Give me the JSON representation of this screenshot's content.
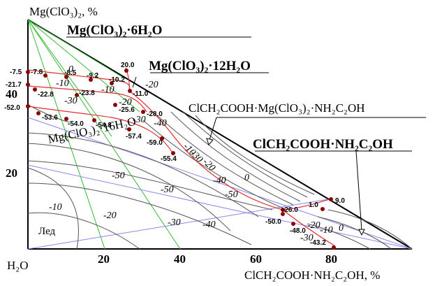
{
  "axes": {
    "y_label": "Mg(ClO₃)₂, %",
    "x_label": "ClCH₂COOH·NH₂C₂OH, %",
    "origin_label": "H₂O",
    "x_ticks": [
      "20",
      "40",
      "60",
      "80"
    ],
    "y_ticks": [
      "20",
      "40"
    ]
  },
  "phases": {
    "hexahydrate": "Mg(ClO₃)₂·6H₂O",
    "dodecahydrate": "Mg(ClO₃)₂·12H₂O",
    "hexadecahydrate": "Mg(ClO₃)₂·16H₂O",
    "double_compound": "ClCH₂COOH·Mg(ClO₃)₂·NH₂C₂OH",
    "salt_compound": "ClCH₂COOH·NH₂C₂OH",
    "ice": "Лед"
  },
  "isotherm_labels": [
    "0",
    "-10",
    "-20",
    "-30",
    "-40",
    "-50",
    "-10",
    "-20",
    "-30",
    "-40",
    "-50",
    "0",
    "-10",
    "-20",
    "-30",
    "-40",
    "-50",
    "-20",
    "-10",
    "0",
    "-30",
    "-10",
    "-30",
    "-20"
  ],
  "point_labels": [
    "20.0",
    "-7.5",
    "-7.8",
    "-8.5",
    "-9.2",
    "-10.2",
    "-11.0",
    "-21.7",
    "-22.8",
    "-23.8",
    "-25.6",
    "-28.0",
    "-52.0",
    "-53.6",
    "-54.0",
    "-54.8",
    "-57.4",
    "-59.0",
    "-55.4",
    "1.0",
    "9.0",
    "-26.0",
    "-50.0",
    "-48.0",
    "-43.2"
  ],
  "colors": {
    "boundary": "#000000",
    "isotherm": "#555555",
    "red_curve": "#e03030",
    "green_line": "#33bb33",
    "blue_line": "#8888ee",
    "point": "#8b0000"
  }
}
